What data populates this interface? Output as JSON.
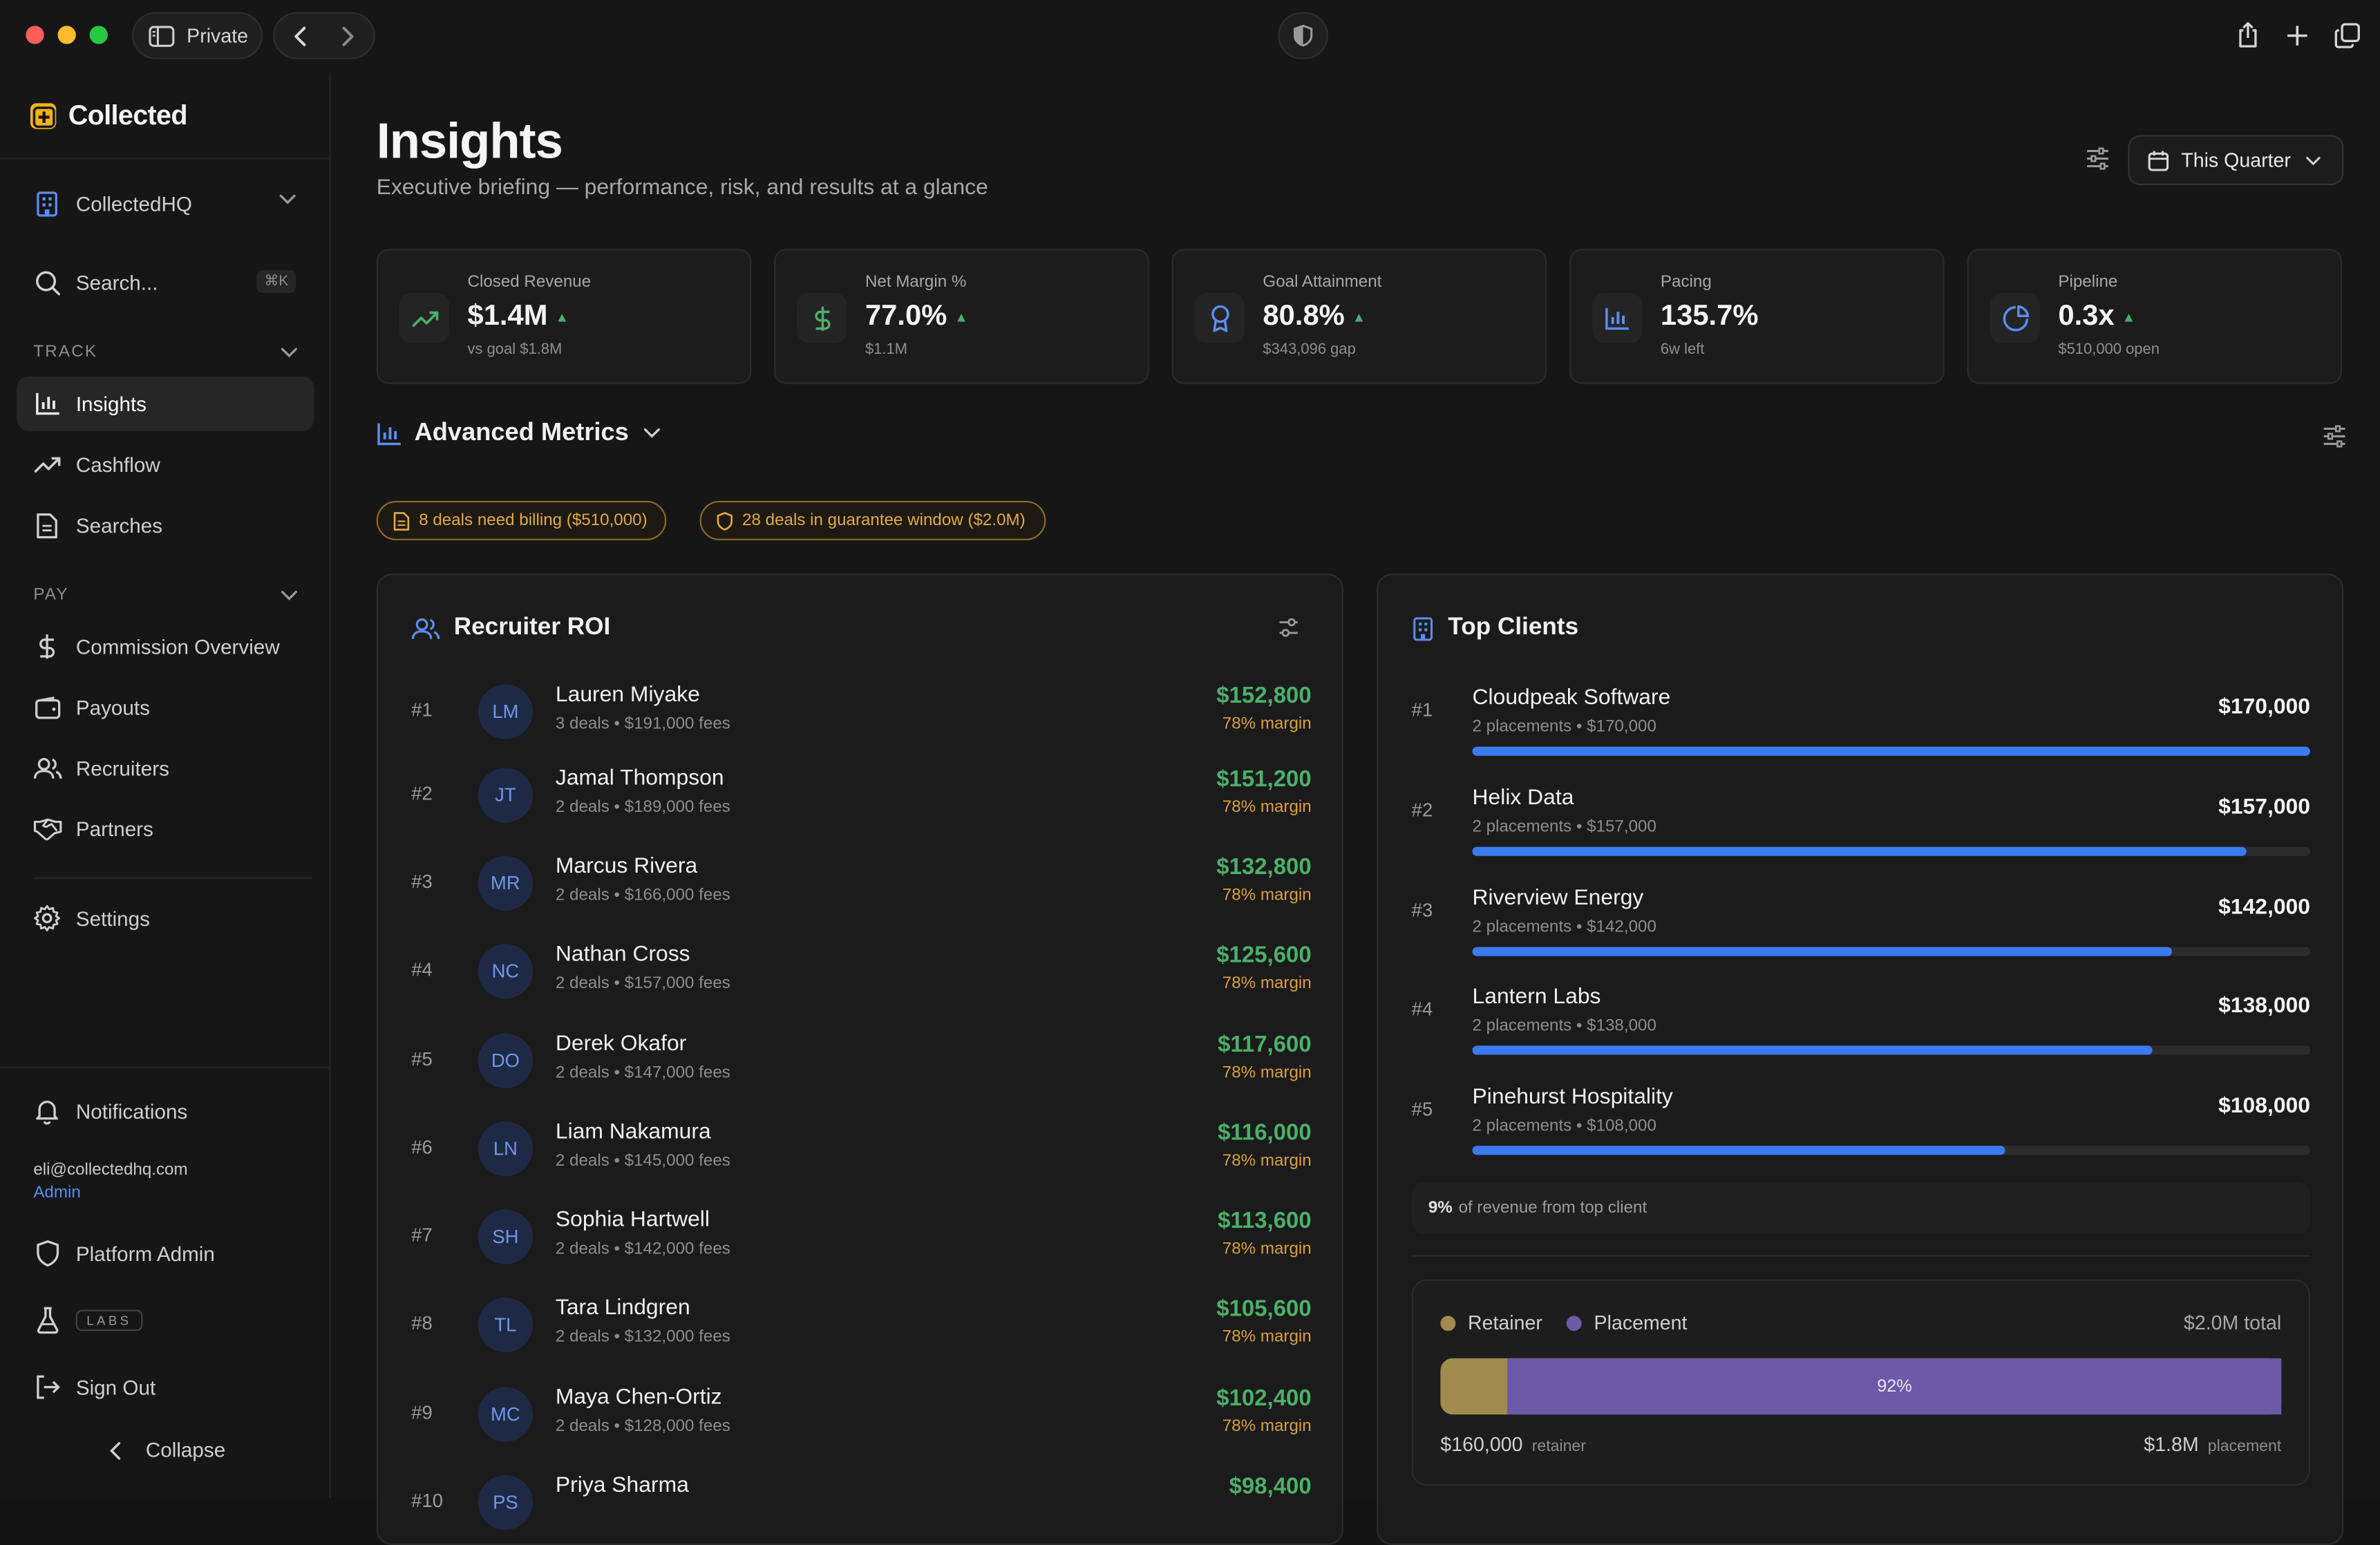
{
  "titlebar": {
    "private_label": "Private"
  },
  "sidebar": {
    "brand": "Collected",
    "workspace": "CollectedHQ",
    "search_label": "Search...",
    "search_shortcut": "⌘K",
    "sections": [
      {
        "label": "TRACK",
        "items": [
          {
            "label": "Insights",
            "icon": "bar-chart-icon",
            "active": true
          },
          {
            "label": "Cashflow",
            "icon": "trend-up-icon"
          },
          {
            "label": "Searches",
            "icon": "document-icon"
          }
        ]
      },
      {
        "label": "PAY",
        "items": [
          {
            "label": "Commission Overview",
            "icon": "dollar-icon"
          },
          {
            "label": "Payouts",
            "icon": "wallet-icon"
          },
          {
            "label": "Recruiters",
            "icon": "users-icon"
          },
          {
            "label": "Partners",
            "icon": "handshake-icon"
          }
        ]
      }
    ],
    "settings_label": "Settings",
    "notifications_label": "Notifications",
    "user_email": "eli@collectedhq.com",
    "user_role": "Admin",
    "platform_admin_label": "Platform Admin",
    "labs_label": "LABS",
    "sign_out_label": "Sign Out",
    "collapse_label": "Collapse"
  },
  "header": {
    "title": "Insights",
    "subtitle": "Executive briefing — performance, risk, and results at a glance",
    "period_label": "This Quarter"
  },
  "kpis": [
    {
      "label": "Closed Revenue",
      "value": "$1.4M",
      "up": true,
      "sub": "vs goal $1.8M",
      "icon": "trend-up-icon",
      "color": "#4caf6a"
    },
    {
      "label": "Net Margin %",
      "value": "77.0%",
      "up": true,
      "sub": "$1.1M",
      "icon": "dollar-icon",
      "color": "#4caf6a"
    },
    {
      "label": "Goal Attainment",
      "value": "80.8%",
      "up": true,
      "sub": "$343,096 gap",
      "icon": "award-icon",
      "color": "#5b8def"
    },
    {
      "label": "Pacing",
      "value": "135.7%",
      "up": false,
      "sub": "6w left",
      "icon": "bar-chart-icon",
      "color": "#5b8def"
    },
    {
      "label": "Pipeline",
      "value": "0.3x",
      "up": true,
      "sub": "$510,000 open",
      "icon": "pie-chart-icon",
      "color": "#5b8def"
    }
  ],
  "advanced_metrics_label": "Advanced Metrics",
  "alerts": [
    {
      "label": "8 deals need billing ($510,000)",
      "icon": "invoice-icon"
    },
    {
      "label": "28 deals in guarantee window ($2.0M)",
      "icon": "shield-icon"
    }
  ],
  "recruiter_roi": {
    "title": "Recruiter ROI",
    "rows": [
      {
        "rank": "#1",
        "initials": "LM",
        "name": "Lauren Miyake",
        "meta": "3 deals • $191,000 fees",
        "amount": "$152,800",
        "margin": "78% margin"
      },
      {
        "rank": "#2",
        "initials": "JT",
        "name": "Jamal Thompson",
        "meta": "2 deals • $189,000 fees",
        "amount": "$151,200",
        "margin": "78% margin"
      },
      {
        "rank": "#3",
        "initials": "MR",
        "name": "Marcus Rivera",
        "meta": "2 deals • $166,000 fees",
        "amount": "$132,800",
        "margin": "78% margin"
      },
      {
        "rank": "#4",
        "initials": "NC",
        "name": "Nathan Cross",
        "meta": "2 deals • $157,000 fees",
        "amount": "$125,600",
        "margin": "78% margin"
      },
      {
        "rank": "#5",
        "initials": "DO",
        "name": "Derek Okafor",
        "meta": "2 deals • $147,000 fees",
        "amount": "$117,600",
        "margin": "78% margin"
      },
      {
        "rank": "#6",
        "initials": "LN",
        "name": "Liam Nakamura",
        "meta": "2 deals • $145,000 fees",
        "amount": "$116,000",
        "margin": "78% margin"
      },
      {
        "rank": "#7",
        "initials": "SH",
        "name": "Sophia Hartwell",
        "meta": "2 deals • $142,000 fees",
        "amount": "$113,600",
        "margin": "78% margin"
      },
      {
        "rank": "#8",
        "initials": "TL",
        "name": "Tara Lindgren",
        "meta": "2 deals • $132,000 fees",
        "amount": "$105,600",
        "margin": "78% margin"
      },
      {
        "rank": "#9",
        "initials": "MC",
        "name": "Maya Chen-Ortiz",
        "meta": "2 deals • $128,000 fees",
        "amount": "$102,400",
        "margin": "78% margin"
      },
      {
        "rank": "#10",
        "initials": "PS",
        "name": "Priya Sharma",
        "meta": "",
        "amount": "$98,400",
        "margin": ""
      }
    ]
  },
  "top_clients": {
    "title": "Top Clients",
    "rows": [
      {
        "rank": "#1",
        "name": "Cloudpeak Software",
        "meta": "2 placements • $170,000",
        "amount": "$170,000",
        "share": 1.0
      },
      {
        "rank": "#2",
        "name": "Helix Data",
        "meta": "2 placements • $157,000",
        "amount": "$157,000",
        "share": 0.9235
      },
      {
        "rank": "#3",
        "name": "Riverview Energy",
        "meta": "2 placements • $142,000",
        "amount": "$142,000",
        "share": 0.8353
      },
      {
        "rank": "#4",
        "name": "Lantern Labs",
        "meta": "2 placements • $138,000",
        "amount": "$138,000",
        "share": 0.8118
      },
      {
        "rank": "#5",
        "name": "Pinehurst Hospitality",
        "meta": "2 placements • $108,000",
        "amount": "$108,000",
        "share": 0.6353
      }
    ],
    "note_value": "9%",
    "note_text": "of revenue from top client"
  },
  "revenue_mix": {
    "retainer_label": "Retainer",
    "placement_label": "Placement",
    "total": "$2.0M total",
    "placement_pct_label": "92%",
    "placement_share": 0.92,
    "retainer_value": "$160,000",
    "retainer_unit": "retainer",
    "placement_value": "$1.8M",
    "placement_unit": "placement",
    "retainer_color": "#a38a4e",
    "placement_color": "#6d5aa6"
  }
}
